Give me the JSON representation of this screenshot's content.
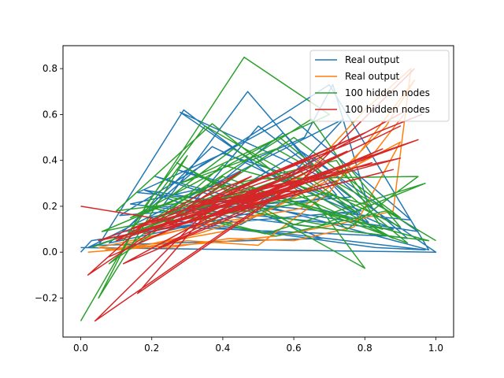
{
  "chart_data": {
    "type": "line",
    "title": "",
    "xlabel": "",
    "ylabel": "",
    "xlim": [
      -0.05,
      1.05
    ],
    "ylim": [
      -0.37,
      0.9
    ],
    "xticks": [
      0.0,
      0.2,
      0.4,
      0.6,
      0.8,
      1.0
    ],
    "xtick_labels": [
      "0.0",
      "0.2",
      "0.4",
      "0.6",
      "0.8",
      "1.0"
    ],
    "yticks": [
      -0.2,
      0.0,
      0.2,
      0.4,
      0.6,
      0.8
    ],
    "ytick_labels": [
      "−0.2",
      "0.0",
      "0.2",
      "0.4",
      "0.6",
      "0.8"
    ],
    "grid": false,
    "legend_position": "top-right",
    "series": [
      {
        "name": "Real output",
        "color": "#1f77b4",
        "x": [
          0.0,
          0.03,
          0.31,
          0.55,
          0.83,
          0.97,
          0.19,
          0.42,
          0.68,
          0.05,
          0.29,
          0.52,
          0.79,
          0.12,
          0.37,
          0.61,
          0.88,
          0.23,
          0.47,
          0.72,
          0.08,
          0.34,
          0.59,
          0.93,
          0.16,
          0.4,
          0.64,
          0.86,
          0.26,
          0.5,
          0.76,
          0.11,
          0.44,
          0.7,
          0.98,
          0.21,
          0.48,
          0.66,
          0.92,
          0.14,
          0.38,
          0.57,
          0.81,
          0.27,
          0.53,
          0.74,
          0.02,
          0.33,
          0.62,
          0.95,
          0.18,
          0.45,
          0.69,
          0.28,
          0.48,
          0.63,
          0.71,
          0.81,
          1.0,
          0.0
        ],
        "y": [
          0.0,
          0.05,
          0.12,
          0.08,
          0.02,
          0.01,
          0.15,
          0.22,
          0.06,
          0.03,
          0.62,
          0.35,
          0.18,
          0.09,
          0.46,
          0.28,
          0.1,
          0.2,
          0.7,
          0.25,
          0.04,
          0.38,
          0.59,
          0.14,
          0.26,
          0.43,
          0.31,
          0.07,
          0.11,
          0.55,
          0.24,
          0.16,
          0.47,
          0.73,
          0.01,
          0.33,
          0.19,
          0.41,
          0.06,
          0.21,
          0.29,
          0.52,
          0.13,
          0.36,
          0.23,
          0.58,
          0.02,
          0.17,
          0.44,
          0.09,
          0.27,
          0.12,
          0.32,
          0.61,
          0.4,
          0.5,
          0.73,
          0.2,
          0.0,
          0.02
        ]
      },
      {
        "name": "Real output",
        "color": "#ff7f0e",
        "x": [
          0.02,
          0.18,
          0.36,
          0.55,
          0.72,
          0.88,
          0.93,
          0.8,
          0.64,
          0.47,
          0.29,
          0.11,
          0.25,
          0.42,
          0.6,
          0.77,
          0.9,
          0.68,
          0.51,
          0.33,
          0.15,
          0.07,
          0.22,
          0.4,
          0.58,
          0.75,
          0.86,
          0.94,
          0.7,
          0.5,
          0.3,
          0.12,
          0.05,
          0.35,
          0.62,
          0.83,
          0.91
        ],
        "y": [
          0.0,
          0.02,
          0.04,
          0.07,
          0.12,
          0.18,
          0.8,
          0.62,
          0.35,
          0.2,
          0.1,
          0.03,
          0.02,
          0.06,
          0.05,
          0.11,
          0.48,
          0.3,
          0.17,
          0.08,
          0.02,
          0.01,
          0.04,
          0.09,
          0.22,
          0.38,
          0.55,
          0.75,
          0.26,
          0.03,
          0.05,
          0.01,
          0.02,
          0.12,
          0.19,
          0.44,
          0.6
        ]
      },
      {
        "name": "100 hidden nodes",
        "color": "#2ca02c",
        "x": [
          0.0,
          0.15,
          0.05,
          0.3,
          0.12,
          0.46,
          0.7,
          0.28,
          0.55,
          0.9,
          0.6,
          0.33,
          0.08,
          0.4,
          0.82,
          0.65,
          0.2,
          0.5,
          0.95,
          0.75,
          0.37,
          0.1,
          0.58,
          0.88,
          0.43,
          0.25,
          0.68,
          0.97,
          0.52,
          0.18,
          0.35,
          0.78,
          0.62,
          0.03,
          0.48,
          0.85,
          0.72,
          0.3,
          0.14,
          0.56,
          0.92,
          0.4,
          0.22,
          0.66,
          0.8,
          0.5,
          0.27,
          0.6,
          0.98,
          0.38,
          0.06,
          0.44,
          0.76,
          0.9,
          0.7,
          0.33,
          0.55,
          0.86,
          1.0
        ],
        "y": [
          -0.3,
          0.1,
          -0.2,
          0.42,
          0.05,
          0.85,
          0.6,
          0.3,
          0.45,
          0.15,
          0.5,
          0.22,
          -0.05,
          0.38,
          0.2,
          0.58,
          0.14,
          0.32,
          0.33,
          0.1,
          0.56,
          0.18,
          0.27,
          0.06,
          0.45,
          0.24,
          0.12,
          0.3,
          0.08,
          0.2,
          0.55,
          0.17,
          0.35,
          0.02,
          0.28,
          0.1,
          0.4,
          0.25,
          0.15,
          0.5,
          0.04,
          0.33,
          0.13,
          0.22,
          -0.07,
          0.19,
          0.39,
          0.12,
          0.05,
          0.3,
          0.09,
          0.21,
          0.36,
          0.11,
          0.26,
          0.16,
          0.07,
          0.18,
          0.05
        ]
      },
      {
        "name": "100 hidden nodes",
        "color": "#d62728",
        "x": [
          0.0,
          0.2,
          0.02,
          0.45,
          0.1,
          0.6,
          0.04,
          0.4,
          0.16,
          0.7,
          0.22,
          0.85,
          0.3,
          0.92,
          0.12,
          0.5,
          0.05,
          0.65,
          0.35,
          0.95,
          0.25,
          0.55,
          0.08,
          0.75,
          0.42,
          0.88,
          0.18,
          0.62,
          0.33,
          0.9,
          0.14,
          0.48,
          0.28,
          0.8,
          0.38,
          0.96,
          0.2,
          0.58,
          0.44,
          0.82,
          0.1,
          0.68,
          0.3,
          0.52,
          0.9,
          0.4,
          0.72,
          0.26,
          0.6,
          0.94
        ],
        "y": [
          0.2,
          0.15,
          -0.1,
          0.35,
          0.05,
          0.3,
          -0.3,
          0.25,
          -0.18,
          0.4,
          0.02,
          0.45,
          0.1,
          0.62,
          -0.05,
          0.2,
          0.05,
          0.38,
          0.15,
          0.49,
          0.12,
          0.31,
          -0.02,
          0.44,
          0.18,
          0.36,
          0.08,
          0.27,
          0.22,
          0.41,
          0.1,
          0.33,
          0.16,
          0.52,
          0.24,
          0.6,
          0.13,
          0.29,
          0.21,
          0.39,
          0.06,
          0.34,
          0.19,
          0.26,
          0.55,
          0.17,
          0.31,
          0.11,
          0.28,
          0.8
        ]
      }
    ]
  }
}
